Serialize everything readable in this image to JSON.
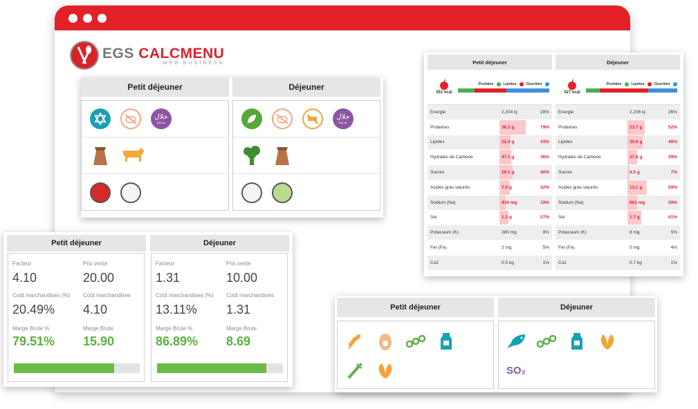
{
  "logo": {
    "brand_grey": "EGS ",
    "brand_red": "CALCMENU",
    "tagline": "WEB BUSINESS"
  },
  "colors": {
    "brand_red": "#e32028",
    "green": "#58b140",
    "nutrient_red": "#e3202a"
  },
  "panel_diet": {
    "columns": [
      {
        "title": "Petit déjeuner",
        "row1_icons": [
          "star-of-david-icon",
          "no-pork-icon",
          "halal-icon"
        ],
        "row2_icons": [
          "flour-sack-icon",
          "cow-icon"
        ],
        "row3_icons": [
          "red-dot-icon",
          "empty-dot-icon"
        ],
        "halal_text": "حلال",
        "halal_sub": "HALAL"
      },
      {
        "title": "Déjeuner",
        "row1_icons": [
          "vegan-leaf-icon",
          "no-pork-icon",
          "no-beef-icon",
          "halal-icon"
        ],
        "row2_icons": [
          "broccoli-icon",
          "flour-sack-icon"
        ],
        "row3_icons": [
          "empty-dot-icon",
          "green-dot-icon"
        ],
        "halal_text": "حلال",
        "halal_sub": "HALAL"
      }
    ]
  },
  "panel_nutrition": {
    "columns": [
      {
        "title": "Petit déjeuner",
        "kcal": "551 kcal",
        "legend": [
          "Protides",
          "Lipides",
          "Glucides"
        ],
        "macro_split": [
          0.18,
          0.35,
          0.47
        ],
        "rows": [
          {
            "name": "Energie",
            "value": "2,304 kj",
            "pct": "28%",
            "level": 0,
            "red": false
          },
          {
            "name": "Protéines",
            "value": "36.3 g",
            "pct": "79%",
            "level": 0.79,
            "red": true
          },
          {
            "name": "Lipides",
            "value": "22.4 g",
            "pct": "33%",
            "level": 0.33,
            "red": true
          },
          {
            "name": "Hydrates de Carbone",
            "value": "47.1 g",
            "pct": "36%",
            "level": 0.36,
            "red": true
          },
          {
            "name": "Sucres",
            "value": "26.1 g",
            "pct": "40%",
            "level": 0.4,
            "red": true
          },
          {
            "name": "Acides gras saturés",
            "value": "7.0 g",
            "pct": "32%",
            "level": 0.32,
            "red": true
          },
          {
            "name": "Sodium (Na)",
            "value": "434 mg",
            "pct": "19%",
            "level": 0.19,
            "red": true
          },
          {
            "name": "Sel",
            "value": "1.1 g",
            "pct": "27%",
            "level": 0.27,
            "red": true
          },
          {
            "name": "Potassium (K)",
            "value": "380 mg",
            "pct": "8%",
            "level": 0,
            "red": false
          },
          {
            "name": "Fer (Fe)",
            "value": "2 mg",
            "pct": "5%",
            "level": 0,
            "red": false
          },
          {
            "name": "Co2",
            "value": "0.5 kg",
            "pct": "1%",
            "level": 0,
            "red": false
          }
        ]
      },
      {
        "title": "Déjeuner",
        "kcal": "527 kcal",
        "legend": [
          "Protides",
          "Lipides",
          "Glucides"
        ],
        "macro_split": [
          0.15,
          0.53,
          0.32
        ],
        "rows": [
          {
            "name": "Energie",
            "value": "2,206 kj",
            "pct": "26%",
            "level": 0,
            "red": false
          },
          {
            "name": "Protéines",
            "value": "23.7 g",
            "pct": "52%",
            "level": 0.52,
            "red": true
          },
          {
            "name": "Lipides",
            "value": "30.6 g",
            "pct": "46%",
            "level": 0.46,
            "red": true
          },
          {
            "name": "Hydrates de Carbone",
            "value": "37.8 g",
            "pct": "29%",
            "level": 0.29,
            "red": true
          },
          {
            "name": "Sucres",
            "value": "4.5 g",
            "pct": "7%",
            "level": 0.07,
            "red": true
          },
          {
            "name": "Acides gras saturés",
            "value": "13.1 g",
            "pct": "59%",
            "level": 0.59,
            "red": true
          },
          {
            "name": "Sodium (Na)",
            "value": "661 mg",
            "pct": "29%",
            "level": 0.29,
            "red": true
          },
          {
            "name": "Sel",
            "value": "1.7 g",
            "pct": "41%",
            "level": 0.41,
            "red": true
          },
          {
            "name": "Potassium (K)",
            "value": "8 mg",
            "pct": "5%",
            "level": 0,
            "red": false
          },
          {
            "name": "Fer (Fe)",
            "value": "5 mg",
            "pct": "4%",
            "level": 0,
            "red": false
          },
          {
            "name": "Co2",
            "value": "0.7 kg",
            "pct": "1%",
            "level": 0,
            "red": false
          }
        ]
      }
    ]
  },
  "panel_finance": {
    "columns": [
      {
        "title": "Petit déjeuner",
        "facteur_label": "Facteur",
        "facteur": "4.10",
        "prix_label": "Prix vente",
        "prix": "20.00",
        "cout_pct_label": "Coût marchandises (%)",
        "cout_pct": "20.49%",
        "cout_label": "Coût marchandises",
        "cout": "4.10",
        "marge_pct_label": "Marge Brute %",
        "marge_pct": "79.51%",
        "marge_label": "Marge Brute",
        "marge": "15.90",
        "margin_level": 0.7951
      },
      {
        "title": "Déjeuner",
        "facteur_label": "Facteur",
        "facteur": "1.31",
        "prix_label": "Prix vente",
        "prix": "10.00",
        "cout_pct_label": "Coût marchandises (%)",
        "cout_pct": "13.11%",
        "cout_label": "Coût marchandises",
        "cout": "1.31",
        "marge_pct_label": "Marge Brute %",
        "marge_pct": "86.89%",
        "marge_label": "Marge Brute",
        "marge": "8.69",
        "margin_level": 0.8689
      }
    ]
  },
  "panel_allergens": {
    "columns": [
      {
        "title": "Petit déjeuner",
        "icons": [
          "gluten-icon",
          "egg-icon",
          "nuts-icon",
          "milk-icon",
          "celery-icon",
          "soy-icon"
        ]
      },
      {
        "title": "Déjeuner",
        "icons": [
          "fish-icon",
          "nuts-icon",
          "milk-icon",
          "soy-icon",
          "sulphites-icon"
        ],
        "so2_text": "SO₂"
      }
    ]
  }
}
